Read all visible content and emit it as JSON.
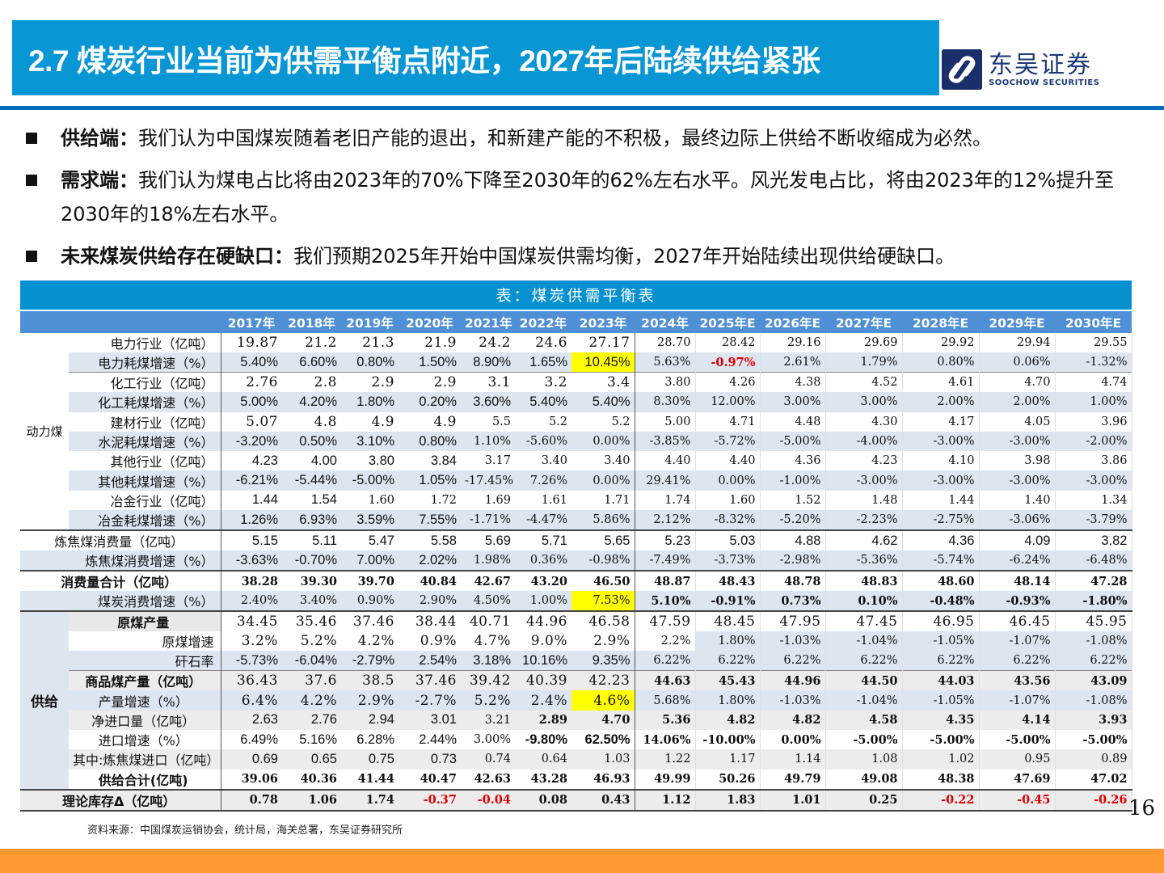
{
  "header": {
    "title": "2.7 煤炭行业当前为供需平衡点附近，2027年后陆续供给紧张",
    "logo_cn": "东吴证券",
    "logo_en": "SOOCHOW SECURITIES",
    "brand_color": "#0896d4"
  },
  "bullets": [
    {
      "head": "供给端",
      "sep": "：",
      "body": "我们认为中国煤炭随着老旧产能的退出，和新建产能的不积极，最终边际上供给不断收缩成为必然。"
    },
    {
      "head": "需求端",
      "sep": "：",
      "body": "我们认为煤电占比将由2023年的70%下降至2030年的62%左右水平。风光发电占比，将由2023年的12%提升至2030年的18%左右水平。"
    },
    {
      "head": "未来煤炭供给存在硬缺口",
      "sep": "：",
      "body": "我们预期2025年开始中国煤炭供需均衡，2027年开始陆续出现供给硬缺口。"
    }
  ],
  "table": {
    "caption": "表：煤炭供需平衡表",
    "columns": [
      "2017年",
      "2018年",
      "2019年",
      "2020年",
      "2021年",
      "2022年",
      "2023年",
      "2024年",
      "2025年E",
      "2026年E",
      "2027年E",
      "2028年E",
      "2029年E",
      "2030年E"
    ],
    "groups": {
      "thermal": "动力煤",
      "supply": "供给"
    },
    "rows": [
      {
        "label": "电力行业（亿吨）",
        "values": [
          "19.87",
          "21.2",
          "21.3",
          "21.9",
          "24.2",
          "24.6",
          "27.17",
          "28.70",
          "28.42",
          "29.16",
          "29.69",
          "29.92",
          "29.94",
          "29.55"
        ]
      },
      {
        "label": "电力耗煤增速（%）",
        "values": [
          "5.40%",
          "6.60%",
          "0.80%",
          "1.50%",
          "8.90%",
          "1.65%",
          "10.45%",
          "5.63%",
          "-0.97%",
          "2.61%",
          "1.79%",
          "0.80%",
          "0.06%",
          "-1.32%"
        ]
      },
      {
        "label": "化工行业（亿吨）",
        "values": [
          "2.76",
          "2.8",
          "2.9",
          "2.9",
          "3.1",
          "3.2",
          "3.4",
          "3.80",
          "4.26",
          "4.38",
          "4.52",
          "4.61",
          "4.70",
          "4.74"
        ]
      },
      {
        "label": "化工耗煤增速（%）",
        "values": [
          "5.00%",
          "4.20%",
          "1.80%",
          "0.20%",
          "3.60%",
          "5.40%",
          "5.40%",
          "8.30%",
          "12.00%",
          "3.00%",
          "3.00%",
          "2.00%",
          "2.00%",
          "1.00%"
        ]
      },
      {
        "label": "建材行业（亿吨）",
        "values": [
          "5.07",
          "4.8",
          "4.9",
          "4.9",
          "5.5",
          "5.2",
          "5.2",
          "5.00",
          "4.71",
          "4.48",
          "4.30",
          "4.17",
          "4.05",
          "3.96"
        ]
      },
      {
        "label": "水泥耗煤增速（%）",
        "values": [
          "-3.20%",
          "0.50%",
          "3.10%",
          "0.80%",
          "1.10%",
          "-5.60%",
          "0.00%",
          "-3.85%",
          "-5.72%",
          "-5.00%",
          "-4.00%",
          "-3.00%",
          "-3.00%",
          "-2.00%"
        ]
      },
      {
        "label": "其他行业（亿吨）",
        "values": [
          "4.23",
          "4.00",
          "3.80",
          "3.84",
          "3.17",
          "3.40",
          "3.40",
          "4.40",
          "4.40",
          "4.36",
          "4.23",
          "4.10",
          "3.98",
          "3.86"
        ]
      },
      {
        "label": "其他耗煤增速（%）",
        "values": [
          "-6.21%",
          "-5.44%",
          "-5.00%",
          "1.05%",
          "-17.45%",
          "7.26%",
          "0.00%",
          "29.41%",
          "0.00%",
          "-1.00%",
          "-3.00%",
          "-3.00%",
          "-3.00%",
          "-3.00%"
        ]
      },
      {
        "label": "冶金行业（亿吨）",
        "values": [
          "1.44",
          "1.54",
          "1.60",
          "1.72",
          "1.69",
          "1.61",
          "1.71",
          "1.74",
          "1.60",
          "1.52",
          "1.48",
          "1.44",
          "1.40",
          "1.34"
        ]
      },
      {
        "label": "冶金耗煤增速（%）",
        "values": [
          "1.26%",
          "6.93%",
          "3.59%",
          "7.55%",
          "-1.71%",
          "-4.47%",
          "5.86%",
          "2.12%",
          "-8.32%",
          "-5.20%",
          "-2.23%",
          "-2.75%",
          "-3.06%",
          "-3.79%"
        ]
      },
      {
        "label": "炼焦煤消费量（亿吨）",
        "values": [
          "5.15",
          "5.11",
          "5.47",
          "5.58",
          "5.69",
          "5.71",
          "5.65",
          "5.23",
          "5.03",
          "4.88",
          "4.62",
          "4.36",
          "4.09",
          "3.82"
        ]
      },
      {
        "label": "炼焦煤消费增速（%）",
        "values": [
          "-3.63%",
          "-0.70%",
          "7.00%",
          "2.02%",
          "1.98%",
          "0.36%",
          "-0.98%",
          "-7.49%",
          "-3.73%",
          "-2.98%",
          "-5.36%",
          "-5.74%",
          "-6.24%",
          "-6.48%"
        ]
      },
      {
        "label": "消费量合计（亿吨）",
        "values": [
          "38.28",
          "39.30",
          "39.70",
          "40.84",
          "42.67",
          "43.20",
          "46.50",
          "48.87",
          "48.43",
          "48.78",
          "48.83",
          "48.60",
          "48.14",
          "47.28"
        ]
      },
      {
        "label": "煤炭消费增速（%）",
        "values": [
          "2.40%",
          "3.40%",
          "0.90%",
          "2.90%",
          "4.50%",
          "1.00%",
          "7.53%",
          "5.10%",
          "-0.91%",
          "0.73%",
          "0.10%",
          "-0.48%",
          "-0.93%",
          "-1.80%"
        ]
      },
      {
        "label": "原煤产量",
        "values": [
          "34.45",
          "35.46",
          "37.46",
          "38.44",
          "40.71",
          "44.96",
          "46.58",
          "47.59",
          "48.45",
          "47.95",
          "47.45",
          "46.95",
          "46.45",
          "45.95"
        ]
      },
      {
        "label": "原煤增速",
        "values": [
          "3.2%",
          "5.2%",
          "4.2%",
          "0.9%",
          "4.7%",
          "9.0%",
          "2.9%",
          "2.2%",
          "1.80%",
          "-1.03%",
          "-1.04%",
          "-1.05%",
          "-1.07%",
          "-1.08%"
        ]
      },
      {
        "label": "矸石率",
        "values": [
          "-5.73%",
          "-6.04%",
          "-2.79%",
          "2.54%",
          "3.18%",
          "10.16%",
          "9.35%",
          "6.22%",
          "6.22%",
          "6.22%",
          "6.22%",
          "6.22%",
          "6.22%",
          "6.22%"
        ]
      },
      {
        "label": "商品煤产量（亿吨）",
        "values": [
          "36.43",
          "37.6",
          "38.5",
          "37.46",
          "39.42",
          "40.39",
          "42.23",
          "44.63",
          "45.43",
          "44.96",
          "44.50",
          "44.03",
          "43.56",
          "43.09"
        ]
      },
      {
        "label": "产量增速（%）",
        "values": [
          "6.4%",
          "4.2%",
          "2.9%",
          "-2.7%",
          "5.2%",
          "2.4%",
          "4.6%",
          "5.68%",
          "1.80%",
          "-1.03%",
          "-1.04%",
          "-1.05%",
          "-1.07%",
          "-1.08%"
        ]
      },
      {
        "label": "净进口量（亿吨）",
        "values": [
          "2.63",
          "2.76",
          "2.94",
          "3.01",
          "3.21",
          "2.89",
          "4.70",
          "5.36",
          "4.82",
          "4.82",
          "4.58",
          "4.35",
          "4.14",
          "3.93"
        ]
      },
      {
        "label": "进口增速（%）",
        "values": [
          "6.49%",
          "5.16%",
          "6.28%",
          "2.44%",
          "3.00%",
          "-9.80%",
          "62.50%",
          "14.06%",
          "-10.00%",
          "0.00%",
          "-5.00%",
          "-5.00%",
          "-5.00%",
          "-5.00%"
        ]
      },
      {
        "label": "其中:炼焦煤进口（亿吨）",
        "values": [
          "0.69",
          "0.65",
          "0.75",
          "0.73",
          "0.74",
          "0.64",
          "1.03",
          "1.22",
          "1.17",
          "1.14",
          "1.08",
          "1.02",
          "0.95",
          "0.89"
        ]
      },
      {
        "label": "供给合计(亿吨)",
        "values": [
          "39.06",
          "40.36",
          "41.44",
          "40.47",
          "42.63",
          "43.28",
          "46.93",
          "49.99",
          "50.26",
          "49.79",
          "49.08",
          "48.38",
          "47.69",
          "47.02"
        ]
      },
      {
        "label": "理论库存Δ（亿吨）",
        "values": [
          "0.78",
          "1.06",
          "1.74",
          "-0.37",
          "-0.04",
          "0.08",
          "0.43",
          "1.12",
          "1.83",
          "1.01",
          "0.25",
          "-0.22",
          "-0.45",
          "-0.26"
        ]
      }
    ],
    "highlight_color": "#ffff00",
    "negative_color": "#e00000"
  },
  "source": "资料来源：中国煤炭运销协会，统计局，海关总署，东吴证券研究所",
  "page_number": "16",
  "footer_color": "#ff9a33"
}
